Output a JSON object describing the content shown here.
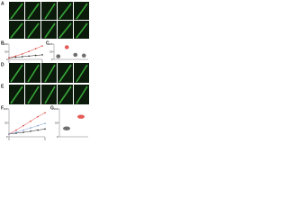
{
  "figure": {
    "panels": [
      "A",
      "B",
      "C",
      "D",
      "E",
      "F",
      "G"
    ]
  },
  "chart_data": [
    {
      "type": "line",
      "x": [
        0,
        1,
        2,
        3,
        4,
        5
      ],
      "xlim": [
        0,
        5
      ],
      "xticks": [
        0,
        5
      ],
      "ylim": [
        0,
        100
      ],
      "yticks": [
        0,
        50,
        100
      ],
      "series": [
        {
          "color": "#222222",
          "values": [
            10,
            14,
            18,
            22,
            26,
            30
          ]
        },
        {
          "color": "#e0403a",
          "values": [
            10,
            22,
            36,
            52,
            70,
            88
          ]
        }
      ]
    },
    {
      "type": "dot",
      "categories": [
        null,
        null,
        null,
        null
      ],
      "values": [
        20,
        80,
        30,
        25
      ],
      "colors": [
        "#555555",
        "#e0403a",
        "#555555",
        "#555555"
      ],
      "ylim": [
        0,
        100
      ],
      "yticks": [
        0,
        50,
        100
      ]
    },
    {
      "type": "line",
      "x": [
        0,
        1,
        2,
        3,
        4,
        5
      ],
      "xlim": [
        0,
        5
      ],
      "xticks": [
        0,
        5
      ],
      "ylim": [
        0,
        100
      ],
      "yticks": [
        0,
        50,
        100
      ],
      "series": [
        {
          "color": "#222222",
          "values": [
            10,
            13,
            16,
            20,
            24,
            28
          ]
        },
        {
          "color": "#e0403a",
          "values": [
            10,
            24,
            40,
            56,
            72,
            86
          ]
        },
        {
          "color": "#7fa0d0",
          "values": [
            10,
            16,
            24,
            32,
            40,
            48
          ]
        }
      ]
    },
    {
      "type": "dot",
      "categories": [
        null,
        null
      ],
      "values": [
        30,
        72
      ],
      "colors": [
        "#555555",
        "#e0403a"
      ],
      "ylim": [
        0,
        100
      ],
      "yticks": [
        0,
        50,
        100
      ]
    }
  ]
}
